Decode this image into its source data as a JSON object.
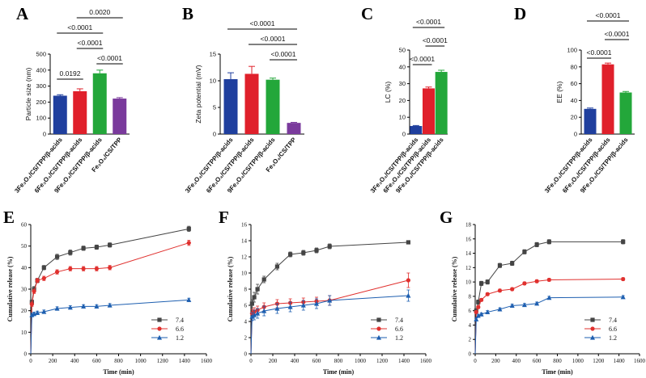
{
  "chart_data": [
    {
      "panel": "A",
      "type": "bar",
      "ylabel": "Particle size (nm)",
      "ylim": [
        0,
        500
      ],
      "yticks": [
        "0",
        "100",
        "200",
        "300",
        "400",
        "500"
      ],
      "categories": [
        "3Fe₃O₄/CS/TPP/β-acids",
        "6Fe₃O₄/CS/TPP/β-acids",
        "9Fe₃O₄/CS/TPP/β-acids",
        "Fe₃O₄/CS/TPP"
      ],
      "values": [
        240,
        268,
        380,
        222
      ],
      "errors": [
        6,
        15,
        20,
        6
      ],
      "colors": [
        "#1f3f9e",
        "#e0202b",
        "#23a73a",
        "#7a3a9c"
      ],
      "comparisons": [
        {
          "from": 0,
          "to": 1,
          "label": "0.0192"
        },
        {
          "from": 2,
          "to": 3,
          "label": "<0.0001"
        },
        {
          "from": 1,
          "to": 2,
          "label": "<0.0001"
        },
        {
          "from": 0,
          "to": 2,
          "label": "<0.0001"
        },
        {
          "from": 1,
          "to": 3,
          "label": "0.0020"
        }
      ]
    },
    {
      "panel": "B",
      "type": "bar",
      "ylabel": "Zeta potential (mV)",
      "ylim": [
        0,
        15
      ],
      "yticks": [
        "0",
        "5",
        "10",
        "15"
      ],
      "categories": [
        "3Fe₃O₄/CS/TPP/β-acids",
        "6Fe₃O₄/CS/TPP/β-acids",
        "9Fe₃O₄/CS/TPP/β-acids",
        "Fe₃O₄/CS/TPP"
      ],
      "values": [
        10.3,
        11.3,
        10.2,
        2.1
      ],
      "errors": [
        1.2,
        1.4,
        0.3,
        0.1
      ],
      "colors": [
        "#1f3f9e",
        "#e0202b",
        "#23a73a",
        "#7a3a9c"
      ],
      "comparisons": [
        {
          "from": 2,
          "to": 3,
          "label": "<0.0001"
        },
        {
          "from": 1,
          "to": 3,
          "label": "<0.0001"
        },
        {
          "from": 0,
          "to": 3,
          "label": "<0.0001"
        }
      ]
    },
    {
      "panel": "C",
      "type": "bar",
      "ylabel": "LC (%)",
      "ylim": [
        0,
        50
      ],
      "yticks": [
        "0",
        "10",
        "20",
        "30",
        "40",
        "50"
      ],
      "categories": [
        "3Fe₃O₄/CS/TPP/β-acids",
        "6Fe₃O₄/CS/TPP/β-acids",
        "9Fe₃O₄/CS/TPP/β-acids"
      ],
      "values": [
        4.8,
        27.2,
        37.0
      ],
      "errors": [
        0.3,
        0.8,
        1.0
      ],
      "colors": [
        "#1f3f9e",
        "#e0202b",
        "#23a73a"
      ],
      "comparisons": [
        {
          "from": 0,
          "to": 1,
          "label": "<0.0001"
        },
        {
          "from": 1,
          "to": 2,
          "label": "<0.0001"
        },
        {
          "from": 0,
          "to": 2,
          "label": "<0.0001"
        }
      ]
    },
    {
      "panel": "D",
      "type": "bar",
      "ylabel": "EE (%)",
      "ylim": [
        0,
        100
      ],
      "yticks": [
        "0",
        "20",
        "40",
        "60",
        "80",
        "100"
      ],
      "categories": [
        "3Fe₃O₄/CS/TPP/β-acids",
        "6Fe₃O₄/CS/TPP/β-acids",
        "9Fe₃O₄/CS/TPP/β-acids"
      ],
      "values": [
        30.0,
        83.0,
        49.5
      ],
      "errors": [
        1.0,
        1.5,
        1.2
      ],
      "colors": [
        "#1f3f9e",
        "#e0202b",
        "#23a73a"
      ],
      "comparisons": [
        {
          "from": 0,
          "to": 1,
          "label": "<0.0001"
        },
        {
          "from": 1,
          "to": 2,
          "label": "<0.0001"
        },
        {
          "from": 0,
          "to": 2,
          "label": "<0.0001"
        }
      ]
    },
    {
      "panel": "E",
      "type": "line",
      "xlabel": "Time (min)",
      "ylabel": "Cumulative release (%)",
      "xlim": [
        0,
        1600
      ],
      "ylim": [
        0,
        60
      ],
      "xticks": [
        "0",
        "200",
        "400",
        "600",
        "800",
        "1000",
        "1200",
        "1400",
        "1600"
      ],
      "yticks": [
        "0",
        "10",
        "20",
        "30",
        "40",
        "50",
        "60"
      ],
      "legend": "lower-right",
      "series": [
        {
          "name": "7.4",
          "color": "#444444",
          "marker": "square",
          "x": [
            0,
            10,
            30,
            60,
            120,
            240,
            360,
            480,
            600,
            720,
            1440
          ],
          "y": [
            0,
            24,
            30,
            34,
            40,
            45,
            47,
            49,
            49.5,
            50.5,
            58
          ],
          "err": [
            0,
            1,
            1.2,
            1,
            1,
            1.2,
            1.2,
            1,
            1,
            1,
            1.2
          ]
        },
        {
          "name": "6.6",
          "color": "#e0302e",
          "marker": "circle",
          "x": [
            0,
            10,
            30,
            60,
            120,
            240,
            360,
            480,
            600,
            720,
            1440
          ],
          "y": [
            0,
            23,
            29,
            34,
            35,
            38,
            39.5,
            39.5,
            39.5,
            40,
            51.5
          ],
          "err": [
            0,
            1,
            1,
            1,
            1,
            1,
            1,
            1,
            1,
            1,
            1.2
          ]
        },
        {
          "name": "1.2",
          "color": "#1e5fb0",
          "marker": "triangle",
          "x": [
            0,
            10,
            30,
            60,
            120,
            240,
            360,
            480,
            600,
            720,
            1440
          ],
          "y": [
            0,
            18,
            18.5,
            19,
            19.5,
            21,
            21.5,
            22,
            22,
            22.5,
            25
          ],
          "err": [
            0,
            0.8,
            0.8,
            0.8,
            0.8,
            0.8,
            0.8,
            0.8,
            0.8,
            0.8,
            0.8
          ]
        }
      ]
    },
    {
      "panel": "F",
      "type": "line",
      "xlabel": "Time (min)",
      "ylabel": "Cumulative release (%)",
      "xlim": [
        0,
        1600
      ],
      "ylim": [
        0,
        16
      ],
      "xticks": [
        "0",
        "200",
        "400",
        "600",
        "800",
        "1000",
        "1200",
        "1400",
        "1600"
      ],
      "yticks": [
        "0",
        "2",
        "4",
        "6",
        "8",
        "10",
        "12",
        "14",
        "16"
      ],
      "legend": "lower-right",
      "series": [
        {
          "name": "7.4",
          "color": "#444444",
          "marker": "square",
          "x": [
            0,
            10,
            30,
            60,
            120,
            240,
            360,
            480,
            600,
            720,
            1440
          ],
          "y": [
            0,
            6.2,
            7.0,
            8.0,
            9.2,
            10.8,
            12.3,
            12.5,
            12.8,
            13.3,
            13.8
          ],
          "err": [
            0,
            0.5,
            0.6,
            0.6,
            0.4,
            0.4,
            0.3,
            0.3,
            0.3,
            0.3,
            0.2
          ]
        },
        {
          "name": "6.6",
          "color": "#e0302e",
          "marker": "circle",
          "x": [
            0,
            10,
            30,
            60,
            120,
            240,
            360,
            480,
            600,
            720,
            1440
          ],
          "y": [
            0,
            5.0,
            5.2,
            5.4,
            5.8,
            6.2,
            6.3,
            6.4,
            6.5,
            6.6,
            9.1
          ],
          "err": [
            0,
            0.5,
            0.5,
            0.5,
            0.5,
            0.5,
            0.5,
            0.5,
            0.5,
            0.6,
            0.9
          ]
        },
        {
          "name": "1.2",
          "color": "#1e5fb0",
          "marker": "triangle",
          "x": [
            0,
            10,
            30,
            60,
            120,
            240,
            360,
            480,
            600,
            720,
            1440
          ],
          "y": [
            0,
            4.6,
            4.8,
            5.0,
            5.3,
            5.6,
            5.8,
            6.0,
            6.2,
            6.6,
            7.2
          ],
          "err": [
            0,
            0.5,
            0.6,
            0.6,
            0.6,
            0.6,
            0.6,
            0.6,
            0.6,
            0.6,
            0.7
          ]
        }
      ]
    },
    {
      "panel": "G",
      "type": "line",
      "xlabel": "Time (min)",
      "ylabel": "Cumulative release (%)",
      "xlim": [
        0,
        1600
      ],
      "ylim": [
        0,
        18
      ],
      "xticks": [
        "0",
        "200",
        "400",
        "600",
        "800",
        "1000",
        "1200",
        "1400",
        "1600"
      ],
      "yticks": [
        "0",
        "2",
        "4",
        "6",
        "8",
        "10",
        "12",
        "14",
        "16",
        "18"
      ],
      "legend": "lower-right",
      "series": [
        {
          "name": "7.4",
          "color": "#444444",
          "marker": "square",
          "x": [
            0,
            10,
            30,
            60,
            120,
            240,
            360,
            480,
            600,
            720,
            1440
          ],
          "y": [
            0,
            6.0,
            7.2,
            9.8,
            10.0,
            12.3,
            12.6,
            14.2,
            15.2,
            15.6,
            15.6
          ],
          "err": [
            0,
            0.3,
            0.3,
            0.3,
            0.3,
            0.3,
            0.3,
            0.3,
            0.3,
            0.3,
            0.3
          ]
        },
        {
          "name": "6.6",
          "color": "#e0302e",
          "marker": "circle",
          "x": [
            0,
            10,
            30,
            60,
            120,
            240,
            360,
            480,
            600,
            720,
            1440
          ],
          "y": [
            0,
            5.8,
            6.5,
            7.5,
            8.3,
            8.8,
            9.0,
            9.8,
            10.1,
            10.3,
            10.4
          ],
          "err": [
            0,
            0.2,
            0.2,
            0.2,
            0.2,
            0.2,
            0.2,
            0.2,
            0.2,
            0.2,
            0.2
          ]
        },
        {
          "name": "1.2",
          "color": "#1e5fb0",
          "marker": "triangle",
          "x": [
            0,
            10,
            30,
            60,
            120,
            240,
            360,
            480,
            600,
            720,
            1440
          ],
          "y": [
            0,
            4.8,
            5.3,
            5.5,
            5.8,
            6.2,
            6.7,
            6.8,
            7.0,
            7.8,
            7.9
          ],
          "err": [
            0,
            0.2,
            0.2,
            0.2,
            0.2,
            0.2,
            0.2,
            0.2,
            0.2,
            0.2,
            0.2
          ]
        }
      ]
    }
  ]
}
